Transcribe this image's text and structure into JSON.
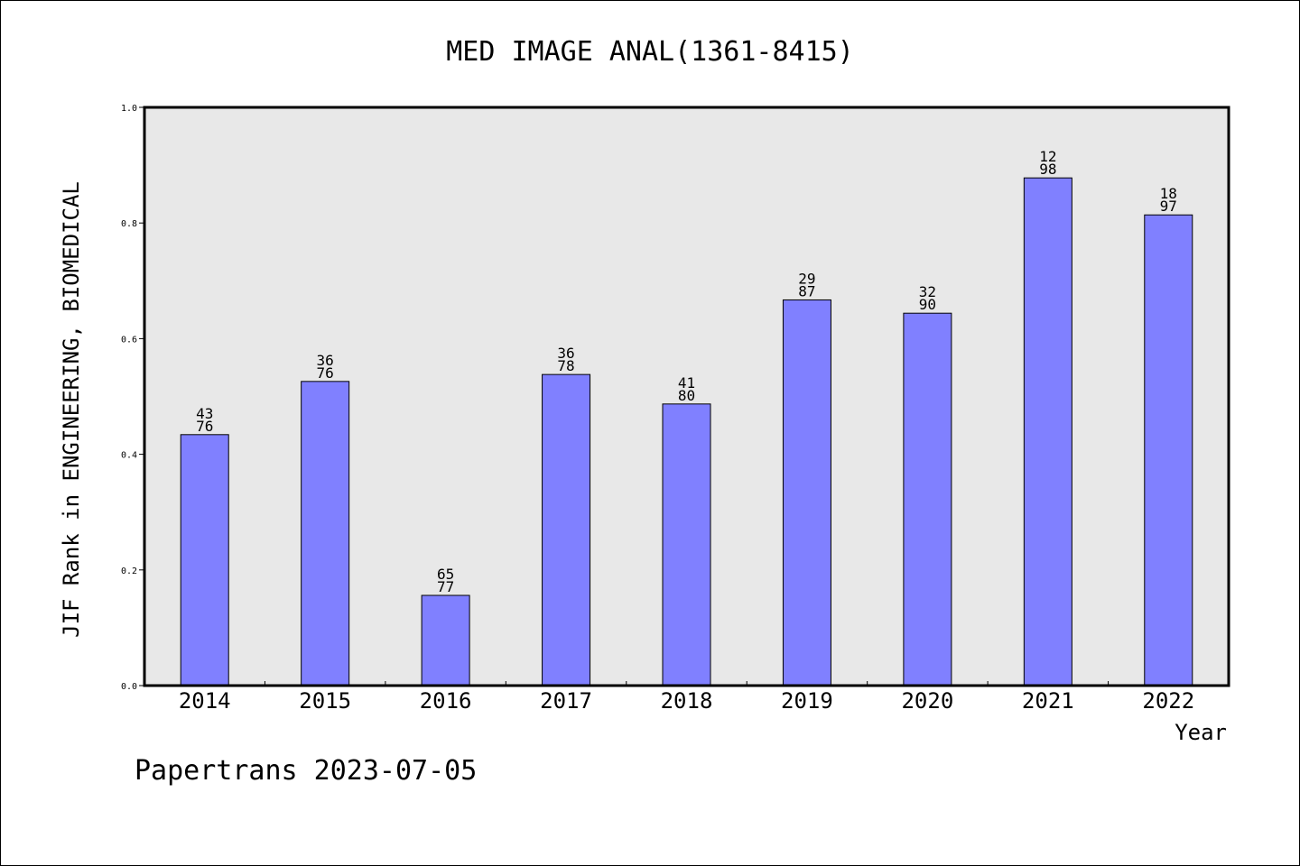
{
  "chart_data": {
    "type": "bar",
    "title": "MED IMAGE ANAL(1361-8415)",
    "ylabel": "JIF Rank in ENGINEERING, BIOMEDICAL",
    "xlabel": "Year",
    "categories": [
      "2014",
      "2015",
      "2016",
      "2017",
      "2018",
      "2019",
      "2020",
      "2021",
      "2022"
    ],
    "values": [
      0.434,
      0.526,
      0.156,
      0.538,
      0.487,
      0.667,
      0.644,
      0.878,
      0.814
    ],
    "labels": [
      [
        "43",
        "76"
      ],
      [
        "36",
        "76"
      ],
      [
        "65",
        "77"
      ],
      [
        "36",
        "78"
      ],
      [
        "41",
        "80"
      ],
      [
        "29",
        "87"
      ],
      [
        "32",
        "90"
      ],
      [
        "12",
        "98"
      ],
      [
        "18",
        "97"
      ]
    ],
    "ylim": [
      0,
      1.0
    ],
    "yticks": [
      "0.0",
      "0.2",
      "0.4",
      "0.6",
      "0.8",
      "1.0"
    ],
    "bar_color": "#8080ff",
    "plot_background": "#e8e8e8",
    "grid": false,
    "legend": "none"
  },
  "footer": "Papertrans 2023-07-05"
}
